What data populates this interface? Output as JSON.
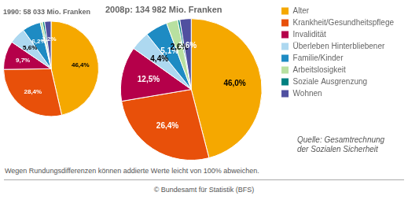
{
  "chart_data": [
    {
      "type": "pie",
      "title": "1990: 58 033 Mio. Franken",
      "categories": [
        "Alter",
        "Krankheit/Gesundheitspflege",
        "Invalidität",
        "Überleben Hinterbliebener",
        "Familie/Kinder",
        "Arbeitslosigkeit",
        "Soziale Ausgrenzung",
        "Wohnen"
      ],
      "values": [
        46.4,
        28.4,
        9.7,
        5.6,
        6.2,
        0.8,
        0.7,
        2.2
      ],
      "value_labels": [
        "46,4%",
        "28,4%",
        "9,7%",
        "5,6%",
        "6,2%",
        null,
        null,
        "2,2%"
      ],
      "colors": [
        "#F5A800",
        "#E8500A",
        "#B5004A",
        "#ADD8F0",
        "#1E8BC3",
        "#B8E0A0",
        "#008080",
        "#5050A0"
      ],
      "data_labels": true
    },
    {
      "type": "pie",
      "title": "2008p: 134 982 Mio. Franken",
      "categories": [
        "Alter",
        "Krankheit/Gesundheitspflege",
        "Invalidität",
        "Überleben Hinterbliebener",
        "Familie/Kinder",
        "Arbeitslosigkeit",
        "Soziale Ausgrenzung",
        "Wohnen"
      ],
      "values": [
        46.0,
        26.4,
        12.5,
        4.4,
        5.1,
        2.6,
        0.5,
        2.6
      ],
      "value_labels": [
        "46,0%",
        "26,4%",
        "12,5%",
        "4,4%",
        "5,1%",
        "2,6%",
        null,
        "2,6%"
      ],
      "colors": [
        "#F5A800",
        "#E8500A",
        "#B5004A",
        "#ADD8F0",
        "#1E8BC3",
        "#B8E0A0",
        "#008080",
        "#5050A0"
      ],
      "data_labels": true,
      "legend": "right",
      "annotations": [
        "Quelle: Gesamtrechnung\nder Sozialen Sicherheit",
        "Wegen Rundungsdifferenzen können addierte Werte leicht von 100% abweichen.",
        "© Bundesamt für Statistik (BFS)"
      ]
    }
  ]
}
